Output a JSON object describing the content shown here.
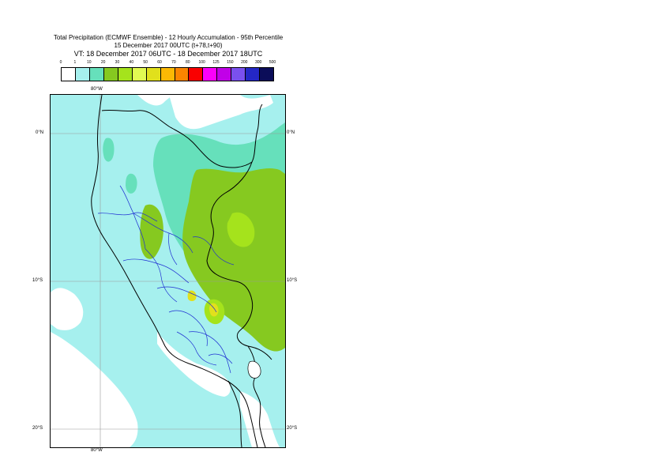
{
  "title": {
    "line1": "Total Precipitation (ECMWF Ensemble) - 12 Hourly Accumulation - 95th Percentile",
    "line2": "15 December 2017 00UTC (t+78,t+90)",
    "line3": "VT: 18 December 2017 06UTC - 18 December 2017 18UTC"
  },
  "legend": {
    "labels": [
      "0",
      "1",
      "10",
      "20",
      "30",
      "40",
      "50",
      "60",
      "70",
      "80",
      "100",
      "125",
      "150",
      "200",
      "300",
      "500"
    ],
    "colors": [
      "#ffffff",
      "#a6f0ee",
      "#66e0bb",
      "#86c920",
      "#a5e31c",
      "#e2fa52",
      "#e1e01c",
      "#fbb904",
      "#fb8500",
      "#fa0000",
      "#fb00fb",
      "#c100e8",
      "#7a50ee",
      "#2427c5",
      "#0b0d59"
    ]
  },
  "axes": {
    "top_lon": "80°W",
    "bottom_lon": "80°W",
    "lat_labels_left": [
      "0°N",
      "10°S",
      "20°S"
    ],
    "lat_labels_right": [
      "0°N",
      "10°S",
      "20°S"
    ]
  },
  "colors": {
    "ocean": "#ffffff",
    "pale_cyan": "#a6f0ee",
    "teal": "#66e0bb",
    "green": "#86c920",
    "light_green": "#a5e31c",
    "yellow": "#e1e01c",
    "country_border": "#000000",
    "region_border": "#1f2fd2",
    "graticule": "#999999"
  }
}
